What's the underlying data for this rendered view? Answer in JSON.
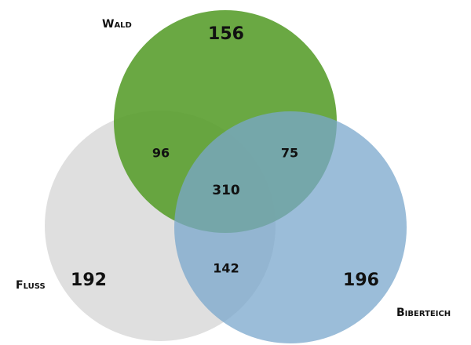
{
  "chart_data": {
    "type": "venn",
    "sets": [
      {
        "name": "Fluss",
        "color": "#d9d9d9"
      },
      {
        "name": "Wald",
        "color": "#5a9e2f"
      },
      {
        "name": "Biberteich",
        "color": "#7aa7cc"
      }
    ],
    "values": [
      156,
      96,
      75,
      310,
      142,
      192,
      196
    ]
  }
}
